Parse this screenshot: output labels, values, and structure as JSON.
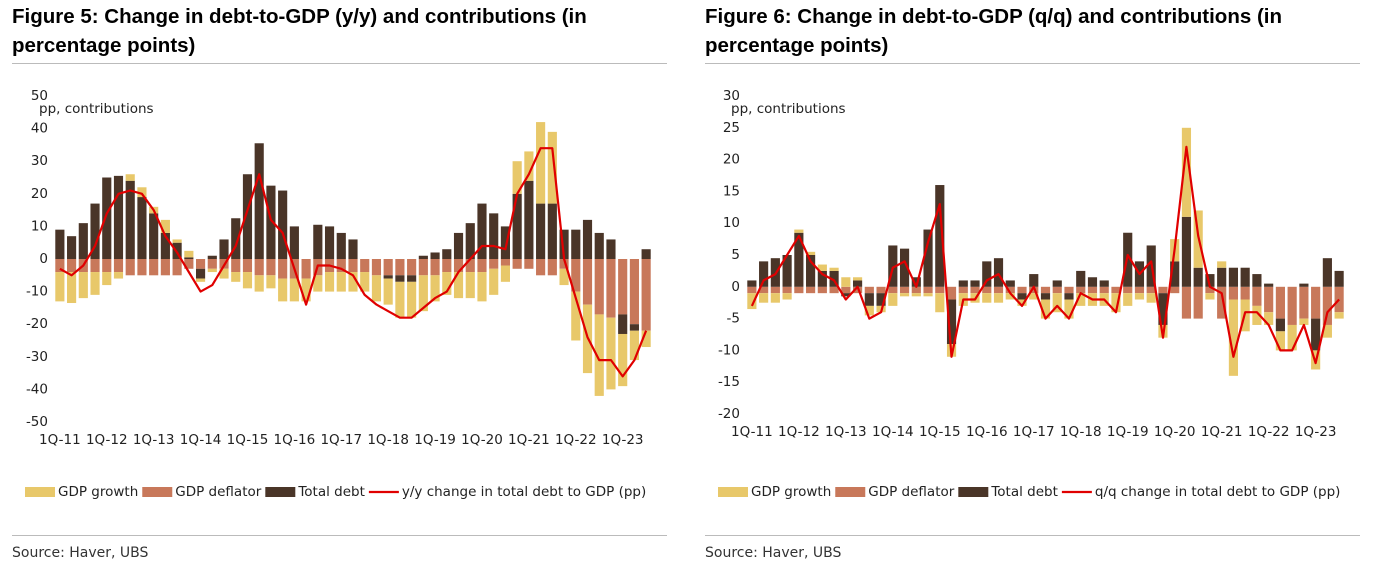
{
  "chart_data": [
    {
      "type": "bar",
      "title": "Figure 5: Change in debt-to-GDP (y/y) and contributions (in percentage points)",
      "annotation": "pp, contributions",
      "source": "Source: Haver, UBS",
      "categories": [
        "1Q-11",
        null,
        null,
        null,
        "1Q-12",
        null,
        null,
        null,
        "1Q-13",
        null,
        null,
        null,
        "1Q-14",
        null,
        null,
        null,
        "1Q-15",
        null,
        null,
        null,
        "1Q-16",
        null,
        null,
        null,
        "1Q-17",
        null,
        null,
        null,
        "1Q-18",
        null,
        null,
        null,
        "1Q-19",
        null,
        null,
        null,
        "1Q-20",
        null,
        null,
        null,
        "1Q-21",
        null,
        null,
        null,
        "1Q-22",
        null,
        null,
        null,
        "1Q-23",
        null,
        null
      ],
      "series": [
        {
          "name": "GDP growth",
          "type": "bar",
          "color": "#e8c86a",
          "values": [
            -9,
            -9.5,
            -8,
            -7,
            -4,
            -2,
            2,
            3,
            2,
            4,
            1,
            2,
            -1,
            -1,
            -3,
            -3,
            -5,
            -5,
            -4,
            -7,
            -7,
            -7,
            -5,
            -6,
            -6,
            -6,
            -6,
            -8,
            -8,
            -11,
            -11,
            -11,
            -8,
            -7,
            -8,
            -8,
            -9,
            -8,
            -5,
            10,
            9,
            25,
            22,
            -5,
            -15,
            -21,
            -25,
            -22,
            -16,
            -9,
            -5
          ]
        },
        {
          "name": "GDP deflator",
          "type": "bar",
          "color": "#c8785a",
          "values": [
            -4,
            -4,
            -4,
            -4,
            -4,
            -4,
            -5,
            -5,
            -5,
            -5,
            -5,
            -3,
            -3,
            -3,
            -3,
            -4,
            -4,
            -5,
            -5,
            -6,
            -6,
            -6,
            -5,
            -4,
            -4,
            -4,
            -4,
            -5,
            -5,
            -5,
            -5,
            -5,
            -5,
            -4,
            -4,
            -4,
            -4,
            -3,
            -2,
            -3,
            -3,
            -5,
            -5,
            -3,
            -10,
            -14,
            -17,
            -18,
            -17,
            -20,
            -22
          ]
        },
        {
          "name": "Total debt",
          "type": "bar",
          "color": "#4a3528",
          "values": [
            9,
            7,
            11,
            17,
            25,
            25.5,
            24,
            19,
            14,
            8,
            5,
            0.5,
            -3,
            1,
            6,
            12.5,
            26,
            35.5,
            22.5,
            21,
            10,
            0,
            10.5,
            10,
            8,
            6,
            0,
            0,
            -1,
            -2,
            -2,
            1,
            2,
            3,
            8,
            11,
            17,
            14,
            10,
            20,
            24,
            17,
            17,
            9,
            9,
            12,
            8,
            6,
            -6,
            -2,
            3
          ]
        },
        {
          "name": "y/y change in total debt to GDP (pp)",
          "type": "line",
          "color": "#e00000",
          "values": [
            -3,
            -5,
            -2,
            4,
            14,
            20,
            21,
            20,
            15,
            7,
            2,
            -4,
            -10,
            -8,
            -2,
            4,
            15,
            26,
            12,
            8,
            -3,
            -14,
            -2,
            -2,
            -3,
            -5,
            -11,
            -14,
            -16,
            -18,
            -18,
            -15,
            -12,
            -10,
            -4,
            0,
            4,
            4,
            3,
            20,
            26,
            34,
            34,
            0,
            -12,
            -24,
            -31,
            -31,
            -36,
            -31,
            -22
          ]
        }
      ],
      "ylim": [
        -50,
        50
      ],
      "yticks": [
        -50,
        -40,
        -30,
        -20,
        -10,
        0,
        10,
        20,
        30,
        40,
        50
      ],
      "grid": false
    },
    {
      "type": "bar",
      "title": "Figure 6: Change in debt-to-GDP (q/q) and contributions (in percentage points)",
      "annotation": "pp, contributions",
      "source": "Source: Haver, UBS",
      "categories": [
        "1Q-11",
        null,
        null,
        null,
        "1Q-12",
        null,
        null,
        null,
        "1Q-13",
        null,
        null,
        null,
        "1Q-14",
        null,
        null,
        null,
        "1Q-15",
        null,
        null,
        null,
        "1Q-16",
        null,
        null,
        null,
        "1Q-17",
        null,
        null,
        null,
        "1Q-18",
        null,
        null,
        null,
        "1Q-19",
        null,
        null,
        null,
        "1Q-20",
        null,
        null,
        null,
        "1Q-21",
        null,
        null,
        null,
        "1Q-22",
        null,
        null,
        null,
        "1Q-23",
        null,
        null
      ],
      "series": [
        {
          "name": "GDP growth",
          "type": "bar",
          "color": "#e8c86a",
          "values": [
            -2.5,
            -1.5,
            -1.5,
            -1,
            0.5,
            0.5,
            1,
            0.5,
            1.5,
            0.5,
            -1.5,
            -1,
            -2,
            -0.5,
            -0.5,
            -0.5,
            -3,
            -2,
            -2,
            -1.5,
            -1.5,
            -1.5,
            -1,
            -1,
            -1,
            -3,
            -3,
            -3,
            -2,
            -2,
            -2,
            -3,
            -2,
            -1,
            -1.5,
            -2,
            3.5,
            14,
            9,
            -1,
            1,
            -12,
            -5,
            -3,
            -2,
            -3,
            -4,
            -1,
            -3,
            -2,
            -1
          ]
        },
        {
          "name": "GDP deflator",
          "type": "bar",
          "color": "#c8785a",
          "values": [
            -1,
            -1,
            -1,
            -1,
            -1,
            -1,
            -1,
            -1,
            -1,
            -1,
            -1,
            -1,
            -1,
            -1,
            -1,
            -1,
            -1,
            -2,
            -1,
            -1,
            -1,
            -1,
            -1,
            -1,
            -1,
            -1,
            -1,
            -1,
            -1,
            -1,
            -1,
            -1,
            -1,
            -1,
            -1,
            -1,
            -1,
            -5,
            -5,
            -1,
            -5,
            -2,
            -2,
            -3,
            -4,
            -5,
            -6,
            -5,
            -5,
            -6,
            -4
          ]
        },
        {
          "name": "Total debt",
          "type": "bar",
          "color": "#4a3528",
          "values": [
            1,
            4,
            4.5,
            5,
            8.5,
            5,
            2.5,
            2.5,
            -0.5,
            1,
            -2,
            -2,
            6.5,
            6,
            1.5,
            9,
            16,
            -7,
            1,
            1,
            4,
            4.5,
            1,
            -1,
            2,
            -1,
            1,
            -1,
            2.5,
            1.5,
            1,
            0,
            8.5,
            4,
            6.5,
            -5,
            4,
            11,
            3,
            2,
            3,
            3,
            3,
            2,
            0.5,
            -2,
            0,
            0.5,
            -5,
            4.5,
            2.5
          ]
        },
        {
          "name": "q/q change in total debt to GDP (pp)",
          "type": "line",
          "color": "#e00000",
          "values": [
            -3,
            1,
            2,
            5,
            8,
            4,
            2,
            1,
            -2,
            0,
            -5,
            -4,
            3,
            4,
            0,
            7,
            13,
            -11,
            -2,
            -2,
            1,
            2,
            -1,
            -3,
            0,
            -5,
            -3,
            -5,
            -1,
            -2,
            -2,
            -4,
            5,
            2,
            4,
            -8,
            6,
            22,
            8,
            0,
            -1,
            -11,
            -4,
            -4,
            -6,
            -10,
            -10,
            -6,
            -12,
            -4,
            -2
          ]
        }
      ],
      "ylim": [
        -20,
        30
      ],
      "yticks": [
        -20,
        -15,
        -10,
        -5,
        0,
        5,
        10,
        15,
        20,
        25,
        30
      ],
      "grid": false
    }
  ]
}
